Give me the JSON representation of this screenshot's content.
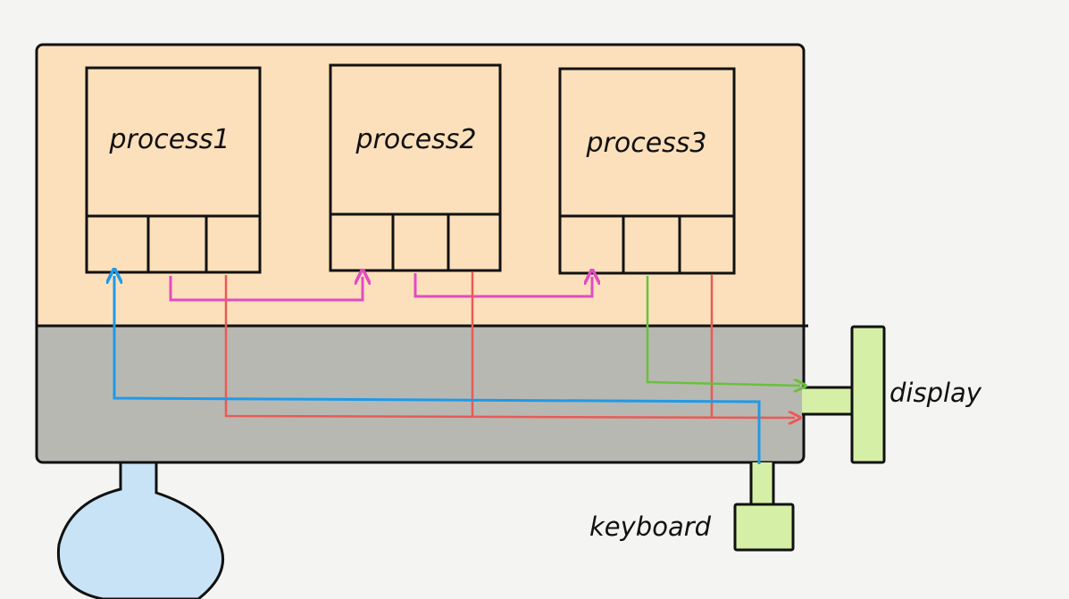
{
  "processes": [
    {
      "label": "process1"
    },
    {
      "label": "process2"
    },
    {
      "label": "process3"
    }
  ],
  "devices": {
    "display_label": "display",
    "keyboard_label": "keyboard"
  },
  "colors": {
    "user_space": "#fce0bb",
    "kernel_space": "#b8b8b2",
    "device": "#d5f0a6",
    "storage": "#c8e3f6",
    "pipe": "#e24bc4",
    "stderr": "#ea5a55",
    "stdin": "#1f9ae8",
    "stdout": "#67c23a"
  }
}
